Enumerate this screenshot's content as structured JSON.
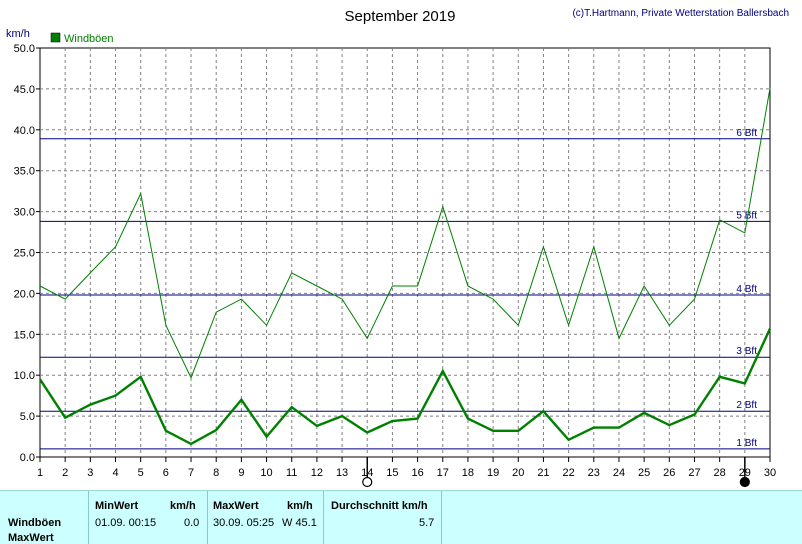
{
  "chart_data": {
    "type": "line",
    "title": "September 2019",
    "credit": "(c)T.Hartmann, Private Wetterstation Ballersbach",
    "ylabel": "km/h",
    "ylim": [
      0,
      50
    ],
    "yticks": [
      "0.0",
      "5.0",
      "10.0",
      "15.0",
      "20.0",
      "25.0",
      "30.0",
      "35.0",
      "40.0",
      "45.0",
      "50.0"
    ],
    "xlim": [
      1,
      30
    ],
    "categories": [
      "1",
      "2",
      "3",
      "4",
      "5",
      "6",
      "7",
      "8",
      "9",
      "10",
      "11",
      "12",
      "13",
      "14",
      "15",
      "16",
      "17",
      "18",
      "19",
      "20",
      "21",
      "22",
      "23",
      "24",
      "25",
      "26",
      "27",
      "28",
      "29",
      "30"
    ],
    "grid": true,
    "legend": "top-left",
    "series": [
      {
        "name": "Windböen",
        "color": "#008000",
        "stroke": "thin",
        "values": [
          20.9,
          19.3,
          22.5,
          25.7,
          32.2,
          16.1,
          9.7,
          17.7,
          19.3,
          16.1,
          22.5,
          20.9,
          19.3,
          14.5,
          20.9,
          20.9,
          30.6,
          20.9,
          19.3,
          16.1,
          25.7,
          16.1,
          25.7,
          14.5,
          20.9,
          16.1,
          19.3,
          29.0,
          27.4,
          45.1
        ]
      },
      {
        "name": "",
        "color": "#008000",
        "stroke": "thick",
        "values": [
          9.5,
          4.8,
          6.4,
          7.5,
          9.8,
          3.2,
          1.6,
          3.3,
          7.0,
          2.5,
          6.1,
          3.8,
          5.0,
          3.0,
          4.4,
          4.7,
          10.5,
          4.7,
          3.2,
          3.2,
          5.6,
          2.1,
          3.6,
          3.6,
          5.4,
          3.9,
          5.2,
          9.8,
          9.0,
          15.7
        ]
      }
    ],
    "reference_lines": [
      {
        "label": "1 Bft",
        "value": 1.0
      },
      {
        "label": "2 Bft",
        "value": 5.6
      },
      {
        "label": "3 Bft",
        "value": 12.2
      },
      {
        "label": "4 Bft",
        "value": 19.8
      },
      {
        "label": "5 Bft",
        "value": 28.8
      },
      {
        "label": "6 Bft",
        "value": 38.9
      }
    ],
    "reference_color": "#000080",
    "markers": [
      {
        "type": "open-circle",
        "day": 14
      },
      {
        "type": "filled-circle",
        "day": 29
      }
    ]
  },
  "stats": {
    "row_labels": [
      "Windböen",
      "MaxWert"
    ],
    "min": {
      "header": "MinWert",
      "unit": "km/h",
      "date": "01.09.  00:15",
      "value": "0.0"
    },
    "max": {
      "header": "MaxWert",
      "unit": "km/h",
      "date": "30.09.  05:25",
      "value": "W 45.1"
    },
    "avg": {
      "header": "Durchschnitt km/h",
      "value": "5.7"
    }
  }
}
